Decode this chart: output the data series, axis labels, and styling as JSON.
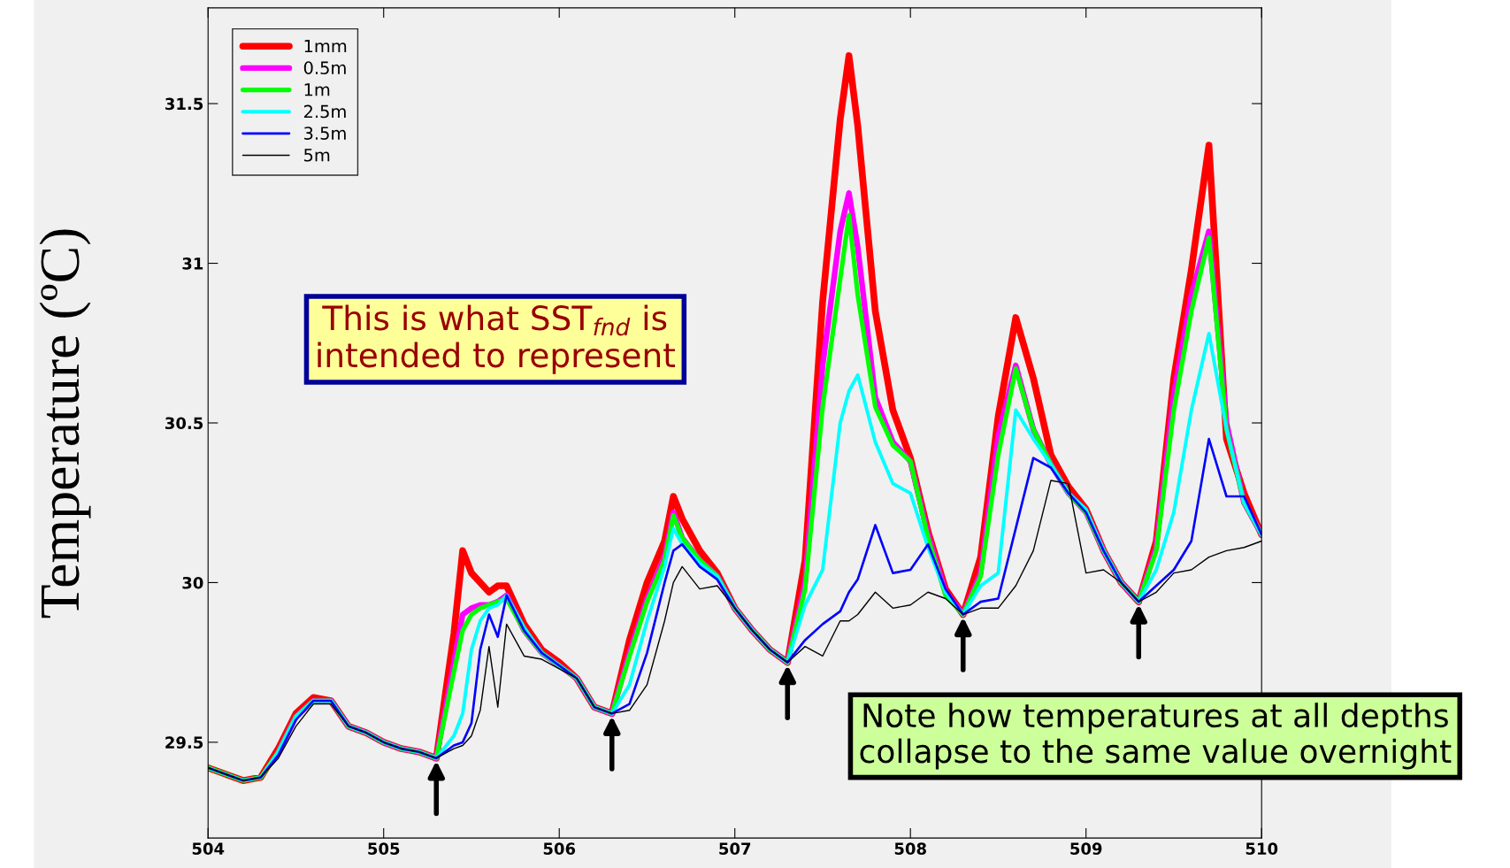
{
  "chart_data": {
    "type": "line",
    "ylabel": "Temperature (ºC)",
    "x": [
      504.0,
      504.1,
      504.2,
      504.3,
      504.4,
      504.5,
      504.6,
      504.7,
      504.8,
      504.9,
      505.0,
      505.1,
      505.2,
      505.3,
      505.4,
      505.45,
      505.5,
      505.55,
      505.6,
      505.65,
      505.7,
      505.8,
      505.9,
      506.0,
      506.1,
      506.2,
      506.3,
      506.4,
      506.5,
      506.6,
      506.65,
      506.7,
      506.8,
      506.9,
      507.0,
      507.1,
      507.2,
      507.3,
      507.4,
      507.5,
      507.6,
      507.65,
      507.7,
      507.8,
      507.9,
      508.0,
      508.1,
      508.2,
      508.3,
      508.4,
      508.5,
      508.6,
      508.7,
      508.8,
      508.9,
      509.0,
      509.1,
      509.2,
      509.3,
      509.4,
      509.5,
      509.6,
      509.7,
      509.8,
      509.9,
      510.0
    ],
    "series": [
      {
        "name": "1mm",
        "color": "#ff0000",
        "values": [
          29.42,
          29.4,
          29.38,
          29.39,
          29.48,
          29.59,
          29.64,
          29.63,
          29.55,
          29.53,
          29.5,
          29.48,
          29.47,
          29.45,
          29.84,
          30.1,
          30.03,
          30.0,
          29.97,
          29.99,
          29.99,
          29.87,
          29.79,
          29.75,
          29.7,
          29.61,
          29.59,
          29.82,
          30.0,
          30.13,
          30.27,
          30.2,
          30.1,
          30.03,
          29.92,
          29.85,
          29.79,
          29.75,
          30.07,
          30.88,
          31.45,
          31.65,
          31.43,
          30.85,
          30.54,
          30.39,
          30.16,
          29.98,
          29.9,
          30.08,
          30.52,
          30.83,
          30.64,
          30.4,
          30.3,
          30.23,
          30.1,
          30.0,
          29.94,
          30.13,
          30.64,
          30.98,
          31.37,
          30.45,
          30.28,
          30.15
        ]
      },
      {
        "name": "0.5m",
        "color": "#ff00ff",
        "values": [
          null,
          null,
          null,
          null,
          29.47,
          29.58,
          29.63,
          29.63,
          29.55,
          29.53,
          29.5,
          29.48,
          29.47,
          29.45,
          29.75,
          29.9,
          29.92,
          29.93,
          29.93,
          29.94,
          29.96,
          29.85,
          29.78,
          29.74,
          29.7,
          29.61,
          29.59,
          29.78,
          29.95,
          30.08,
          30.22,
          30.14,
          30.07,
          30.02,
          29.92,
          29.85,
          29.79,
          29.75,
          30.0,
          30.68,
          31.1,
          31.22,
          31.05,
          30.58,
          30.44,
          30.38,
          30.15,
          29.97,
          29.9,
          30.03,
          30.46,
          30.68,
          30.48,
          30.37,
          30.28,
          30.22,
          30.1,
          30.0,
          29.94,
          30.11,
          30.59,
          30.9,
          31.1,
          30.5,
          30.25,
          30.15
        ]
      },
      {
        "name": "1m",
        "color": "#00ff00",
        "values": [
          29.42,
          29.4,
          29.38,
          29.39,
          29.47,
          29.58,
          29.63,
          29.63,
          29.55,
          29.53,
          29.5,
          29.48,
          29.47,
          29.45,
          29.72,
          29.85,
          29.9,
          29.92,
          29.93,
          29.94,
          29.95,
          29.85,
          29.78,
          29.74,
          29.7,
          29.61,
          29.59,
          29.77,
          29.94,
          30.07,
          30.21,
          30.14,
          30.07,
          30.02,
          29.92,
          29.85,
          29.79,
          29.75,
          29.98,
          30.55,
          30.95,
          31.15,
          30.9,
          30.55,
          30.43,
          30.38,
          30.14,
          29.96,
          29.9,
          30.02,
          30.4,
          30.67,
          30.48,
          30.37,
          30.28,
          30.22,
          30.1,
          30.0,
          29.94,
          30.1,
          30.54,
          30.85,
          31.08,
          30.48,
          30.25,
          30.15
        ]
      },
      {
        "name": "2.5m",
        "color": "#00ffff",
        "values": [
          29.42,
          29.4,
          29.38,
          29.39,
          29.47,
          29.58,
          29.63,
          29.63,
          29.55,
          29.53,
          29.5,
          29.48,
          29.47,
          29.45,
          29.52,
          29.59,
          29.79,
          29.88,
          29.92,
          29.93,
          29.96,
          29.86,
          29.78,
          29.74,
          29.7,
          29.61,
          29.59,
          29.68,
          29.88,
          30.05,
          30.17,
          30.12,
          30.06,
          30.02,
          29.92,
          29.85,
          29.79,
          29.75,
          29.93,
          30.04,
          30.5,
          30.6,
          30.65,
          30.44,
          30.31,
          30.28,
          30.11,
          29.97,
          29.9,
          29.99,
          30.03,
          30.54,
          30.45,
          30.37,
          30.28,
          30.23,
          30.1,
          30.0,
          29.94,
          30.04,
          30.22,
          30.54,
          30.78,
          30.48,
          30.25,
          30.15
        ]
      },
      {
        "name": "3.5m",
        "color": "#0000ff",
        "values": [
          29.42,
          29.4,
          29.38,
          29.39,
          29.46,
          29.57,
          29.63,
          29.63,
          29.55,
          29.53,
          29.5,
          29.48,
          29.47,
          29.45,
          29.49,
          29.5,
          29.56,
          29.79,
          29.9,
          29.83,
          29.96,
          29.85,
          29.78,
          29.74,
          29.7,
          29.61,
          29.59,
          29.62,
          29.78,
          30.0,
          30.1,
          30.12,
          30.05,
          30.01,
          29.92,
          29.85,
          29.79,
          29.75,
          29.82,
          29.87,
          29.91,
          29.97,
          30.01,
          30.18,
          30.03,
          30.04,
          30.12,
          29.98,
          29.9,
          29.94,
          29.95,
          30.17,
          30.39,
          30.36,
          30.28,
          30.22,
          30.1,
          30.0,
          29.94,
          29.99,
          30.04,
          30.13,
          30.45,
          30.27,
          30.27,
          30.15
        ]
      },
      {
        "name": "5m",
        "color": "#000000",
        "values": [
          29.42,
          29.4,
          29.38,
          29.39,
          29.45,
          29.55,
          29.62,
          29.62,
          29.55,
          29.53,
          29.5,
          29.48,
          29.47,
          29.45,
          29.48,
          29.49,
          29.52,
          29.6,
          29.8,
          29.61,
          29.87,
          29.77,
          29.76,
          29.73,
          29.7,
          29.61,
          29.59,
          29.6,
          29.68,
          29.88,
          30.0,
          30.05,
          29.98,
          29.99,
          29.92,
          29.85,
          29.79,
          29.75,
          29.8,
          29.77,
          29.88,
          29.88,
          29.9,
          29.97,
          29.92,
          29.93,
          29.97,
          29.95,
          29.9,
          29.92,
          29.92,
          29.99,
          30.1,
          30.32,
          30.31,
          30.03,
          30.04,
          30.0,
          29.94,
          29.97,
          30.03,
          30.04,
          30.08,
          30.1,
          30.11,
          30.13
        ]
      }
    ],
    "xlim": [
      504,
      510
    ],
    "xticks": [
      504,
      505,
      506,
      507,
      508,
      509,
      510
    ],
    "ylim": [
      29.2,
      31.8
    ],
    "yticks": [
      29.5,
      30,
      30.5,
      31,
      31.5
    ],
    "grid": false,
    "legend": "top left",
    "line_style": "solid",
    "marker": "none",
    "annotations": [
      "This is what SST$_{fnd}$ is\nintended to represent",
      "Note how temperatures at all depths\ncollapse to the same value overnight"
    ]
  }
}
